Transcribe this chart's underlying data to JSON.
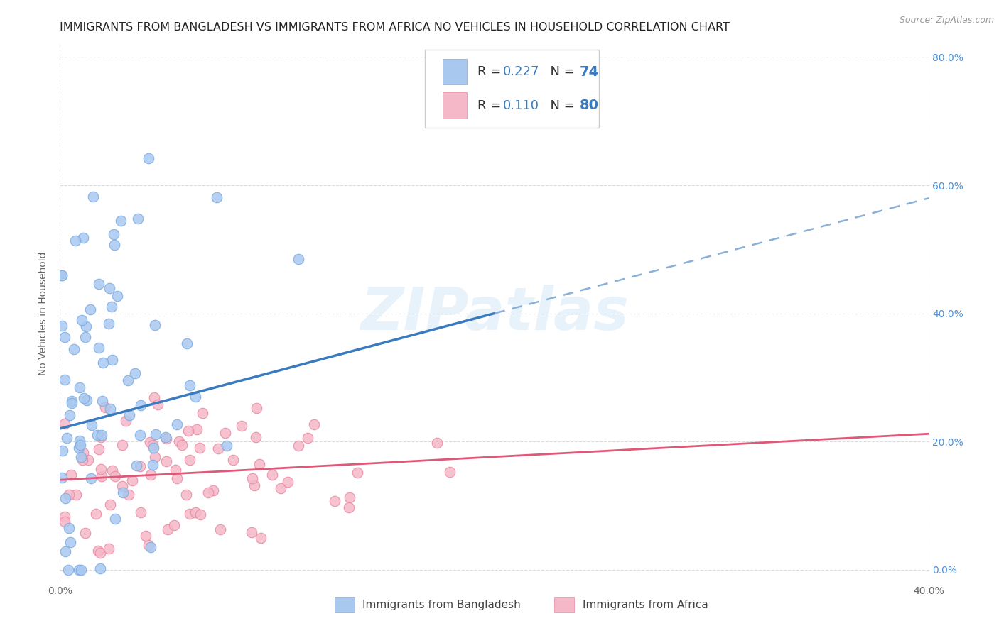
{
  "title": "IMMIGRANTS FROM BANGLADESH VS IMMIGRANTS FROM AFRICA NO VEHICLES IN HOUSEHOLD CORRELATION CHART",
  "source": "Source: ZipAtlas.com",
  "ylabel": "No Vehicles in Household",
  "xlim": [
    0.0,
    0.4
  ],
  "ylim": [
    -0.02,
    0.82
  ],
  "plot_ylim": [
    0.0,
    0.8
  ],
  "xticks": [
    0.0,
    0.4
  ],
  "yticks": [
    0.0,
    0.2,
    0.4,
    0.6,
    0.8
  ],
  "right_yticklabels": [
    "0.0%",
    "20.0%",
    "40.0%",
    "60.0%",
    "80.0%"
  ],
  "series1_label": "Immigrants from Bangladesh",
  "series1_color": "#a8c8f0",
  "series1_edge": "#7aabdf",
  "series1_R": 0.227,
  "series1_N": 74,
  "series2_label": "Immigrants from Africa",
  "series2_color": "#f5b8c8",
  "series2_edge": "#e888a0",
  "series2_R": 0.11,
  "series2_N": 80,
  "line1_color": "#3a7abf",
  "line2_color": "#e05878",
  "dashed_line_color": "#8ab0d8",
  "watermark": "ZIPatlas",
  "background_color": "#ffffff",
  "grid_color": "#cccccc",
  "title_fontsize": 11.5,
  "axis_label_fontsize": 10,
  "tick_fontsize": 10,
  "right_tick_color": "#4a90d9",
  "line1_intercept": 0.22,
  "line1_slope": 0.9,
  "line2_intercept": 0.14,
  "line2_slope": 0.18
}
